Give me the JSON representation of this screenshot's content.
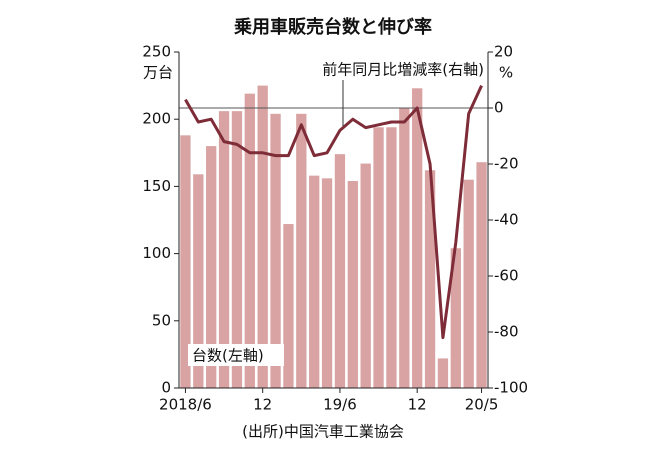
{
  "chart_data": {
    "type": "bar_line",
    "title": "乗用車販売台数と伸び率",
    "y_unit": "万台",
    "y2_unit": "%",
    "source": "(出所)中国汽車工業協会",
    "categories": [
      "2018/6",
      null,
      null,
      null,
      null,
      null,
      "12",
      null,
      null,
      null,
      null,
      null,
      "19/6",
      null,
      null,
      null,
      null,
      null,
      "12",
      null,
      null,
      null,
      null,
      "20/5"
    ],
    "series": [
      {
        "name": "台数(左軸)",
        "color": "#d9a3a3",
        "axis": "y",
        "values": [
          188,
          159,
          180,
          206,
          206,
          219,
          225,
          204,
          122,
          204,
          158,
          156,
          174,
          154,
          167,
          194,
          194,
          208,
          223,
          162,
          22,
          104,
          155,
          168
        ]
      },
      {
        "name": "前年同月比増減率(右軸)",
        "color": "#7d2c38",
        "axis": "y2",
        "values": [
          3,
          -5,
          -4,
          -12,
          -13,
          -16,
          -16,
          -17,
          -17,
          -6,
          -17,
          -16,
          -8,
          -4,
          -7,
          -6,
          -5,
          -5,
          0,
          -20,
          -82,
          -48,
          -2,
          8
        ]
      }
    ],
    "ylim": [
      0,
      250
    ],
    "yticks": [
      0,
      50,
      100,
      150,
      200,
      250
    ],
    "y2lim": [
      -100,
      20
    ],
    "y2ticks": [
      -100,
      -80,
      -60,
      -40,
      -20,
      0,
      20
    ]
  }
}
